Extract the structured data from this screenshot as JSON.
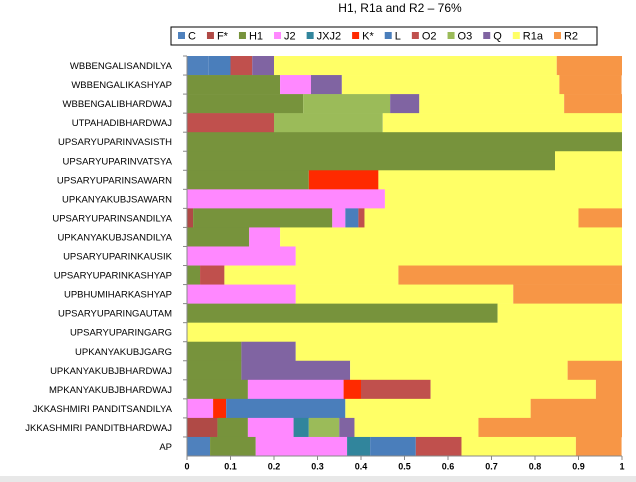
{
  "chart_data": {
    "type": "stacked-barh",
    "title": "H1, R1a and R2 – 76%",
    "categories": [
      "WBBENGALISANDILYA",
      "WBBENGALIKASHYAP",
      "WBBENGALIBHARDWAJ",
      "UTPAHADIBHARDWAJ",
      "UPSARYUPARINVASISTH",
      "UPSARYUPARINVATSYA",
      "UPSARYUPARINSAWARN",
      "UPKANYAKUBJSAWARN",
      "UPSARYUPARINSANDILYA",
      "UPKANYAKUBJSANDILYA",
      "UPSARYUPARINKAUSIK",
      "UPSARYUPARINKASHYAP",
      "UPBHUMIHARKASHYAP",
      "UPSARYUPARINGAUTAM",
      "UPSARYUPARINGARG",
      "UPKANYAKUBJGARG",
      "UPKANYAKUBJBHARDWAJ",
      "MPKANYAKUBJBHARDWAJ",
      "JKKASHMIRI PANDITSANDILYA",
      "JKKASHMIRI PANDITBHARDWAJ",
      "AP"
    ],
    "series": [
      {
        "name": "C",
        "color": "#4f81bd",
        "values": [
          0.05,
          0,
          0,
          0,
          0,
          0,
          0,
          0,
          0,
          0,
          0,
          0,
          0,
          0,
          0,
          0,
          0,
          0,
          0,
          0,
          0.053
        ]
      },
      {
        "name": "F*",
        "color": "#b04a46",
        "values": [
          0,
          0,
          0,
          0,
          0,
          0,
          0,
          0,
          0.014,
          0,
          0,
          0,
          0,
          0,
          0,
          0,
          0,
          0,
          0,
          0.07,
          0
        ]
      },
      {
        "name": "H1",
        "color": "#77933c",
        "values": [
          0,
          0.214,
          0.267,
          0,
          1,
          0.846,
          0.28,
          0,
          0.32,
          0.143,
          0,
          0.03,
          0,
          0.714,
          0,
          0.125,
          0.125,
          0.14,
          0,
          0.07,
          0.105
        ]
      },
      {
        "name": "J2",
        "color": "#ff88ff",
        "values": [
          0,
          0.071,
          0,
          0,
          0,
          0,
          0,
          0.455,
          0.03,
          0.071,
          0.25,
          0,
          0.25,
          0,
          0,
          0,
          0,
          0.22,
          0.06,
          0.105,
          0.21
        ]
      },
      {
        "name": "JXJ2",
        "color": "#31859c",
        "values": [
          0,
          0,
          0,
          0,
          0,
          0,
          0,
          0,
          0,
          0,
          0,
          0,
          0,
          0,
          0,
          0,
          0,
          0,
          0,
          0.035,
          0.053
        ]
      },
      {
        "name": "K*",
        "color": "#ff2a00",
        "values": [
          0,
          0,
          0,
          0,
          0,
          0,
          0.16,
          0,
          0,
          0,
          0,
          0,
          0,
          0,
          0,
          0,
          0,
          0.04,
          0.03,
          0,
          0
        ]
      },
      {
        "name": "L",
        "color": "#4a7ebb",
        "values": [
          0.05,
          0,
          0,
          0,
          0,
          0,
          0,
          0,
          0.03,
          0,
          0,
          0,
          0,
          0,
          0,
          0,
          0,
          0,
          0.274,
          0,
          0.105
        ]
      },
      {
        "name": "O2",
        "color": "#c0504d",
        "values": [
          0.05,
          0,
          0,
          0.2,
          0,
          0,
          0,
          0,
          0.014,
          0,
          0,
          0.056,
          0,
          0,
          0,
          0,
          0,
          0.16,
          0,
          0,
          0.105
        ]
      },
      {
        "name": "O3",
        "color": "#9bbb59",
        "values": [
          0,
          0,
          0.2,
          0.25,
          0,
          0,
          0,
          0,
          0,
          0,
          0,
          0,
          0,
          0,
          0,
          0,
          0,
          0,
          0,
          0.07,
          0
        ]
      },
      {
        "name": "Q",
        "color": "#8064a2",
        "values": [
          0.05,
          0.071,
          0.067,
          0,
          0,
          0,
          0,
          0,
          0,
          0,
          0,
          0,
          0,
          0,
          0,
          0.125,
          0.25,
          0,
          0,
          0.035,
          0
        ]
      },
      {
        "name": "R1a",
        "color": "#ffff66",
        "values": [
          0.65,
          0.5,
          0.333,
          0.55,
          0,
          0.154,
          0.56,
          0.545,
          0.492,
          0.786,
          0.75,
          0.4,
          0.5,
          0.286,
          1,
          0.75,
          0.5,
          0.38,
          0.426,
          0.285,
          0.263
        ]
      },
      {
        "name": "R2",
        "color": "#f79646",
        "values": [
          0.15,
          0.143,
          0.133,
          0,
          0,
          0,
          0,
          0,
          0.1,
          0,
          0,
          0.514,
          0.25,
          0,
          0,
          0,
          0.125,
          0.06,
          0.21,
          0.33,
          0.105
        ]
      }
    ],
    "xlim": [
      0,
      1
    ],
    "xticks": [
      0,
      0.1,
      0.2,
      0.3,
      0.4,
      0.5,
      0.6,
      0.7,
      0.8,
      0.9,
      1
    ]
  }
}
